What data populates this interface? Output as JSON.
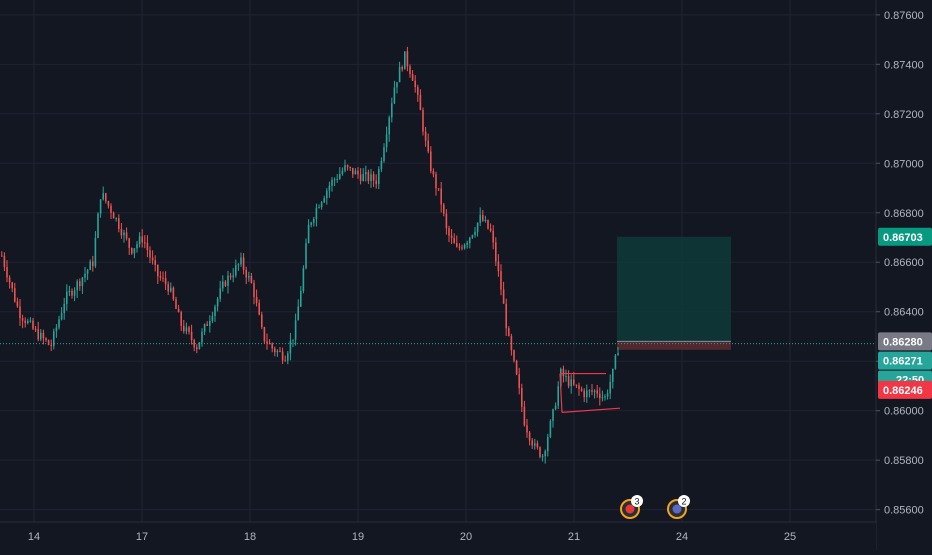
{
  "colors": {
    "background": "#131722",
    "grid": "#1f2433",
    "axis_text": "#b2b5be",
    "bull": "#26a69a",
    "bear": "#ef5350",
    "triangle": "#f23645",
    "target_zone": "#0e3a3a",
    "stop_zone": "#5a2a31",
    "current_line": "#26a69a",
    "badge_target": "#089981",
    "badge_current": "#26a69a",
    "badge_entry": "#787b86",
    "badge_countdown": "#26a69a",
    "badge_stop": "#f23645"
  },
  "chart_data": {
    "type": "candlestick",
    "y_axis": {
      "min": 0.8555,
      "max": 0.8766,
      "ticks": [
        "0.87600",
        "0.87400",
        "0.87200",
        "0.87000",
        "0.86800",
        "0.86600",
        "0.86400",
        "0.86200",
        "0.86000",
        "0.85800",
        "0.85600"
      ]
    },
    "x_axis": {
      "ticks": [
        "14",
        "17",
        "18",
        "19",
        "20",
        "21",
        "24",
        "25"
      ]
    },
    "price_path": [
      [
        0,
        0.8664
      ],
      [
        18,
        0.864
      ],
      [
        34,
        0.8632
      ],
      [
        50,
        0.8626
      ],
      [
        64,
        0.8645
      ],
      [
        78,
        0.8652
      ],
      [
        92,
        0.866
      ],
      [
        100,
        0.8688
      ],
      [
        112,
        0.868
      ],
      [
        122,
        0.8672
      ],
      [
        130,
        0.8665
      ],
      [
        142,
        0.867
      ],
      [
        156,
        0.8655
      ],
      [
        168,
        0.865
      ],
      [
        180,
        0.8635
      ],
      [
        196,
        0.8626
      ],
      [
        208,
        0.8637
      ],
      [
        224,
        0.8652
      ],
      [
        240,
        0.866
      ],
      [
        252,
        0.865
      ],
      [
        262,
        0.863
      ],
      [
        272,
        0.8625
      ],
      [
        284,
        0.8622
      ],
      [
        294,
        0.8632
      ],
      [
        302,
        0.8655
      ],
      [
        308,
        0.8675
      ],
      [
        318,
        0.8684
      ],
      [
        330,
        0.8692
      ],
      [
        344,
        0.8698
      ],
      [
        360,
        0.8695
      ],
      [
        376,
        0.8693
      ],
      [
        384,
        0.871
      ],
      [
        394,
        0.8732
      ],
      [
        404,
        0.8743
      ],
      [
        412,
        0.8735
      ],
      [
        420,
        0.872
      ],
      [
        426,
        0.8705
      ],
      [
        432,
        0.8695
      ],
      [
        440,
        0.8685
      ],
      [
        446,
        0.8672
      ],
      [
        456,
        0.8665
      ],
      [
        468,
        0.867
      ],
      [
        480,
        0.8678
      ],
      [
        490,
        0.8672
      ],
      [
        500,
        0.865
      ],
      [
        508,
        0.8628
      ],
      [
        516,
        0.8613
      ],
      [
        524,
        0.8595
      ],
      [
        534,
        0.8585
      ],
      [
        542,
        0.8582
      ],
      [
        552,
        0.8598
      ],
      [
        560,
        0.8615
      ],
      [
        572,
        0.861
      ],
      [
        584,
        0.8607
      ],
      [
        596,
        0.8608
      ],
      [
        604,
        0.8605
      ],
      [
        612,
        0.8615
      ],
      [
        618,
        0.8627
      ]
    ],
    "current_price": 0.86271,
    "position": {
      "entry": 0.8628,
      "target": 0.86703,
      "stop": 0.86246
    },
    "triangle_pattern": {
      "upper": [
        [
          560,
          0.8615
        ],
        [
          606,
          0.8615
        ]
      ],
      "lower": [
        [
          562,
          0.85993
        ],
        [
          620,
          0.8601
        ]
      ]
    },
    "events": [
      {
        "x": 630,
        "count": "3"
      },
      {
        "x": 677,
        "count": "2"
      }
    ]
  },
  "price_badges": {
    "target": "0.86703",
    "entry": "0.86280",
    "current": "0.86271",
    "countdown": "22:50",
    "stop": "0.86246"
  }
}
